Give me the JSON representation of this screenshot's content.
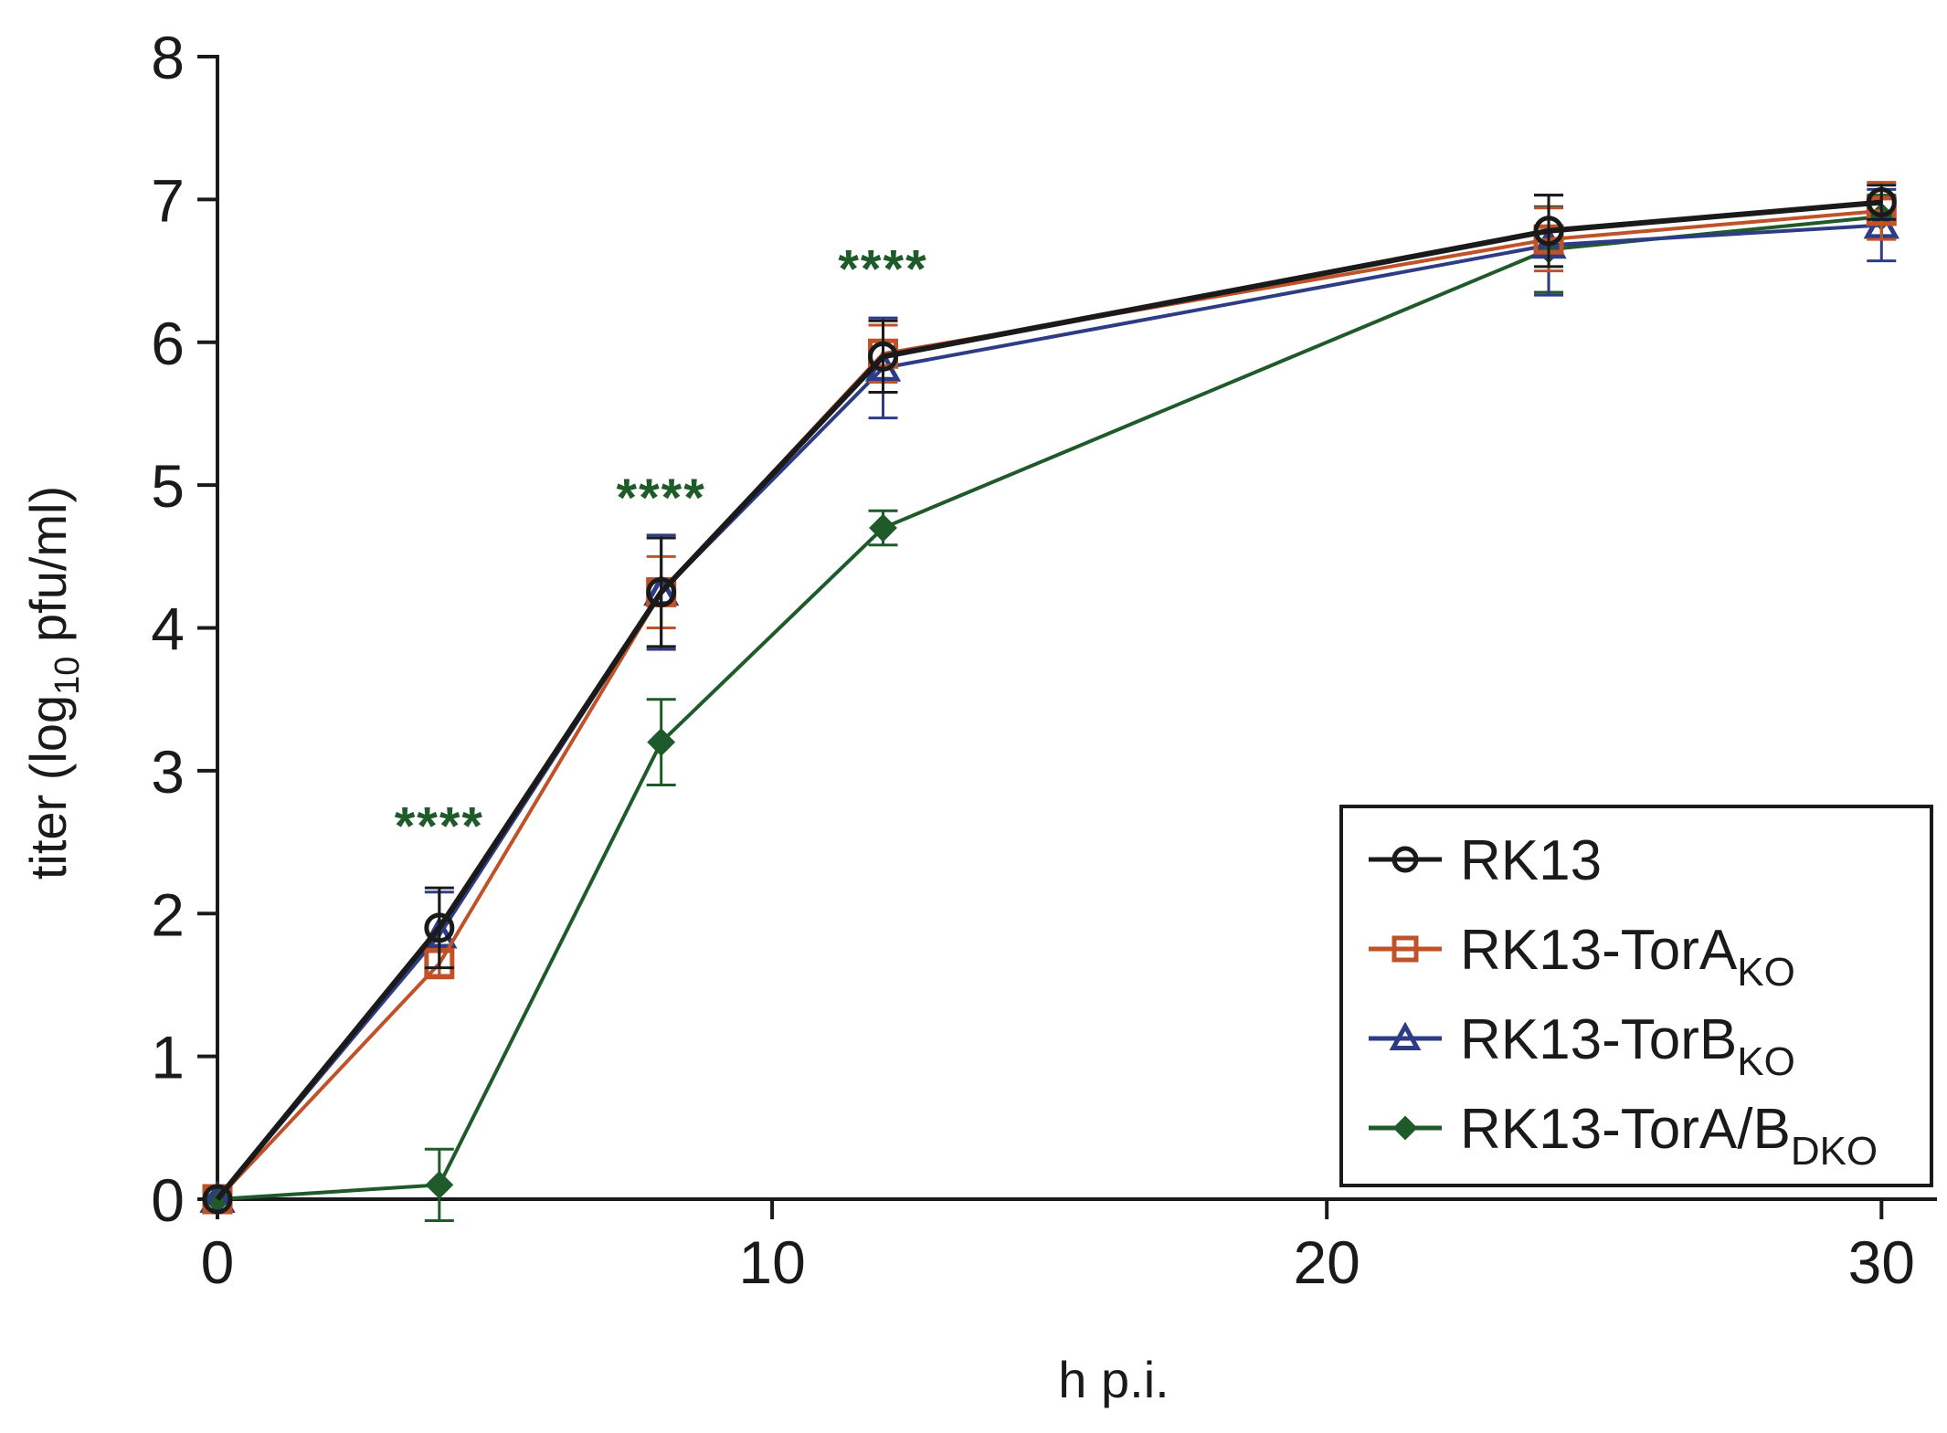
{
  "chart_data": {
    "type": "line",
    "title": "",
    "xlabel": "h p.i.",
    "ylabel_main": "titer (log",
    "ylabel_sub": "10",
    "ylabel_tail": " pfu/ml)",
    "xlim": [
      0,
      31
    ],
    "ylim": [
      0,
      8
    ],
    "xticks": [
      0,
      10,
      20,
      30
    ],
    "yticks": [
      0,
      1,
      2,
      3,
      4,
      5,
      6,
      7,
      8
    ],
    "xtick_labels": [
      "0",
      "10",
      "20",
      "30"
    ],
    "ytick_labels": [
      "0",
      "1",
      "2",
      "3",
      "4",
      "5",
      "6",
      "7",
      "8"
    ],
    "x": [
      0,
      4,
      8,
      12,
      24,
      30
    ],
    "series": [
      {
        "name": "RK13",
        "legend_main": "RK13",
        "legend_sub": "",
        "color": "#1a1a1a",
        "marker": "circle",
        "values": [
          0,
          1.9,
          4.25,
          5.9,
          6.78,
          6.98
        ],
        "errors": [
          0,
          0.28,
          0.38,
          0.25,
          0.25,
          0.12
        ]
      },
      {
        "name": "RK13-TorA KO",
        "legend_main": "RK13-TorA",
        "legend_sub": "KO",
        "color": "#c0522a",
        "marker": "square",
        "values": [
          0,
          1.65,
          4.25,
          5.92,
          6.72,
          6.92
        ],
        "errors": [
          0,
          0.1,
          0.25,
          0.2,
          0.22,
          0.2
        ]
      },
      {
        "name": "RK13-TorB KO",
        "legend_main": "RK13-TorB",
        "legend_sub": "KO",
        "color": "#2e3b85",
        "marker": "triangle",
        "values": [
          0,
          1.85,
          4.25,
          5.82,
          6.68,
          6.82
        ],
        "errors": [
          0,
          0.3,
          0.4,
          0.35,
          0.35,
          0.25
        ]
      },
      {
        "name": "RK13-TorA/B DKO",
        "legend_main": "RK13-TorA/B",
        "legend_sub": "DKO",
        "color": "#1f5a2a",
        "marker": "diamond",
        "values": [
          0,
          0.1,
          3.2,
          4.7,
          6.65,
          6.88
        ],
        "errors": [
          0,
          0.25,
          0.3,
          0.12,
          0.3,
          0.15
        ]
      }
    ],
    "annotations": [
      {
        "text": "****",
        "x": 4,
        "y": 2.6
      },
      {
        "text": "****",
        "x": 8,
        "y": 4.9
      },
      {
        "text": "****",
        "x": 12,
        "y": 6.5
      }
    ],
    "annotation_color": "#1f5a2a",
    "legend_position": "bottom-right"
  }
}
